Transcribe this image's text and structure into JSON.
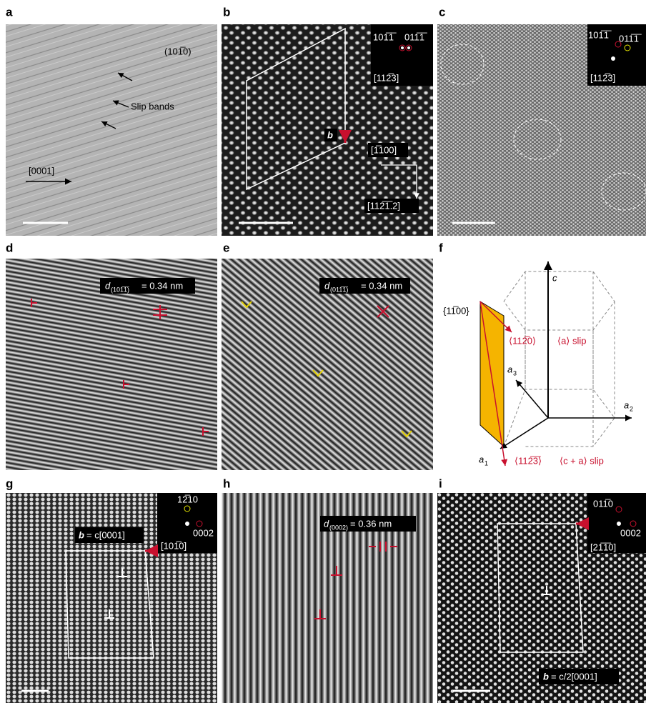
{
  "panels": {
    "a": {
      "label": "a",
      "plane": "(101̅0)",
      "slip_bands": "Slip bands",
      "direction": "[0001]"
    },
    "b": {
      "label": "b",
      "spot_1": "101̅1̅",
      "spot_2": "011̅1̅",
      "zone_axis": "[112̅3]",
      "burgers": "b",
      "dir_1": "[1̅100]",
      "dir_2": "[112̅1̅.2]"
    },
    "c": {
      "label": "c",
      "spot_1": "101̅1̅",
      "spot_2": "011̅1̅",
      "zone_axis": "[112̅3]"
    },
    "d": {
      "label": "d",
      "symbol": "d",
      "subscript": "(101̅1̅)",
      "value": "= 0.34 nm"
    },
    "e": {
      "label": "e",
      "symbol": "d",
      "subscript": "(011̅1̅)",
      "value": "= 0.34 nm"
    },
    "f": {
      "label": "f",
      "axis_c": "c",
      "plane": "{11̅00}",
      "dir_a": "⟨112̅0⟩",
      "slip_a": "⟨a⟩ slip",
      "axis_a3": "a",
      "axis_a3_sub": "3",
      "axis_a2": "a",
      "axis_a2_sub": "2",
      "axis_a1": "a",
      "axis_a1_sub": "1",
      "dir_ca": "⟨112̅3̅⟩",
      "slip_ca": "⟨c + a⟩ slip"
    },
    "g": {
      "label": "g",
      "spot_1": "12̅10",
      "spot_2": "0002",
      "zone_axis": "[101̅0]",
      "burgers": "b",
      "burgers_value": "= c[0001]"
    },
    "h": {
      "label": "h",
      "symbol": "d",
      "subscript": "(0002)",
      "value": "= 0.36 nm"
    },
    "i": {
      "label": "i",
      "spot_1": "011̅0",
      "spot_2": "0002",
      "zone_axis": "[21̅1̅0]",
      "burgers": "b",
      "burgers_value": "= c/2[0001]"
    }
  }
}
